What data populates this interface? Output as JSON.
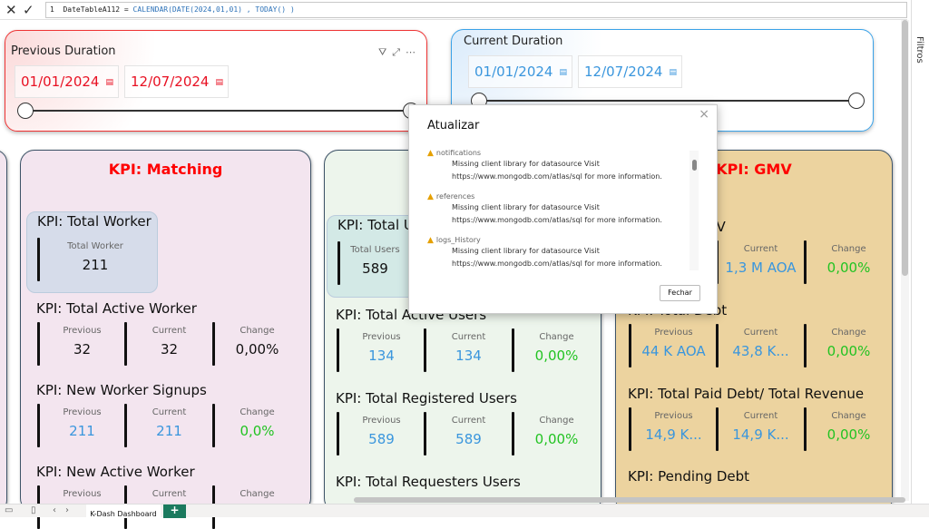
{
  "formula": {
    "line": "1",
    "name": "DateTableA112",
    "eq": " = ",
    "expr": "CALENDAR(DATE(2024,01,01) , TODAY() )"
  },
  "filters_label": "Filtros",
  "previous_duration": {
    "title": "Previous Duration",
    "start": "01/01/2024",
    "end": "12/07/2024",
    "color": "#e81123"
  },
  "current_duration": {
    "title": "Current Duration",
    "start": "01/01/2024",
    "end": "12/07/2024",
    "color": "#3a96dd"
  },
  "cards": [
    {
      "title": "KPI: Matching",
      "bg": "#f3e5ef",
      "box": {
        "title": "KPI: Total Worker",
        "label": "Total Worker",
        "value": "211",
        "bg": "#d6dcea"
      },
      "sections": [
        {
          "title": "KPI: Total Active Worker",
          "stats": [
            {
              "label": "Previous",
              "value": "32",
              "color": "#111"
            },
            {
              "label": "Current",
              "value": "32",
              "color": "#111"
            },
            {
              "label": "Change",
              "value": "0,00%",
              "color": "#111"
            }
          ]
        },
        {
          "title": "KPI: New Worker Signups",
          "stats": [
            {
              "label": "Previous",
              "value": "211",
              "color": "#3a96dd"
            },
            {
              "label": "Current",
              "value": "211",
              "color": "#3a96dd"
            },
            {
              "label": "Change",
              "value": "0,0%",
              "color": "#22c322"
            }
          ]
        },
        {
          "title": "KPI: New Active Worker",
          "stats": [
            {
              "label": "Previous",
              "value": "",
              "color": "#111"
            },
            {
              "label": "Current",
              "value": "",
              "color": "#111"
            },
            {
              "label": "Change",
              "value": "",
              "color": "#111"
            }
          ]
        }
      ]
    },
    {
      "title": "",
      "bg": "#edf5ec",
      "box": {
        "title": "KPI: Total Users",
        "label": "Total Users",
        "value": "589",
        "bg": "#d3e9e6"
      },
      "sections": [
        {
          "title": "KPI: Total Active Users",
          "stats": [
            {
              "label": "Previous",
              "value": "134",
              "color": "#3a96dd"
            },
            {
              "label": "Current",
              "value": "134",
              "color": "#3a96dd"
            },
            {
              "label": "Change",
              "value": "0,00%",
              "color": "#22c322"
            }
          ]
        },
        {
          "title": "KPI: Total Registered Users",
          "stats": [
            {
              "label": "Previous",
              "value": "589",
              "color": "#3a96dd"
            },
            {
              "label": "Current",
              "value": "589",
              "color": "#3a96dd"
            },
            {
              "label": "Change",
              "value": "0,00%",
              "color": "#22c322"
            }
          ]
        },
        {
          "title": "KPI: Total Requesters Users",
          "stats": []
        }
      ]
    },
    {
      "title": "KPI: GMV",
      "bg": "#ecd39f",
      "box": null,
      "sections": [
        {
          "title": "KPI: Total GMV",
          "stats": [
            {
              "label": "Previous",
              "value": "",
              "color": "#3a96dd"
            },
            {
              "label": "Current",
              "value": "1,3 M AOA",
              "color": "#3a96dd"
            },
            {
              "label": "Change",
              "value": "0,00%",
              "color": "#22c322"
            }
          ]
        },
        {
          "title": "KPI: Total Debt",
          "stats": [
            {
              "label": "Previous",
              "value": "44 K AOA",
              "color": "#3a96dd"
            },
            {
              "label": "Current",
              "value": "43,8 K...",
              "color": "#3a96dd"
            },
            {
              "label": "Change",
              "value": "0,00%",
              "color": "#22c322"
            }
          ]
        },
        {
          "title": "KPI: Total Paid Debt/ Total Revenue",
          "stats": [
            {
              "label": "Previous",
              "value": "14,9 K...",
              "color": "#3a96dd"
            },
            {
              "label": "Current",
              "value": "14,9 K...",
              "color": "#3a96dd"
            },
            {
              "label": "Change",
              "value": "0,00%",
              "color": "#22c322"
            }
          ]
        },
        {
          "title": "KPI: Pending Debt",
          "stats": []
        }
      ]
    }
  ],
  "dialog": {
    "title": "Atualizar",
    "close_label": "Fechar",
    "items": [
      {
        "name": "notifications",
        "line1": "Missing client library for datasource Visit",
        "line2": "https://www.mongodb.com/atlas/sql for more information."
      },
      {
        "name": "references",
        "line1": "Missing client library for datasource Visit",
        "line2": "https://www.mongodb.com/atlas/sql for more information."
      },
      {
        "name": "logs_History",
        "line1": "Missing client library for datasource Visit",
        "line2": "https://www.mongodb.com/atlas/sql for more information."
      }
    ]
  },
  "page_tab": "K-Dash Dashboard",
  "add_page_label": "+"
}
